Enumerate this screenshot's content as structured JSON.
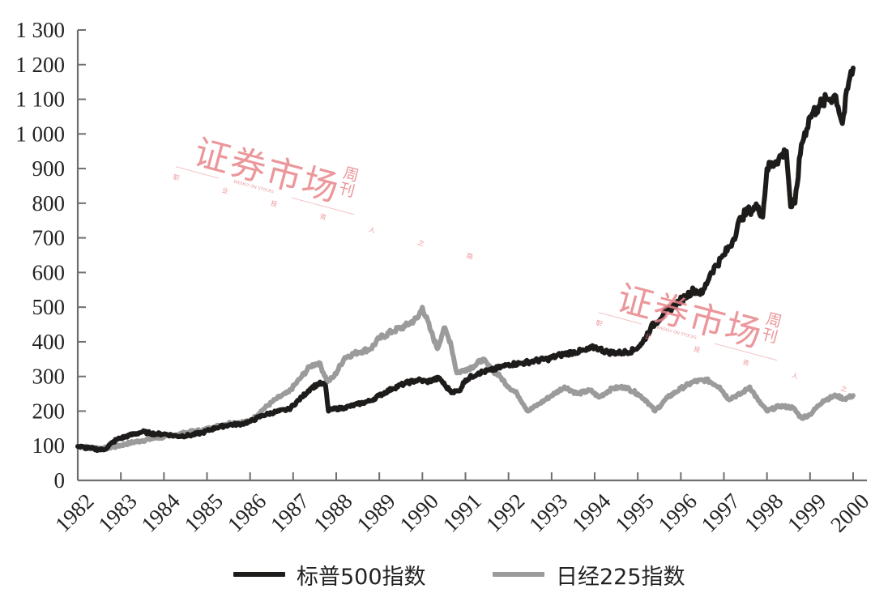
{
  "chart_data": {
    "type": "line",
    "title": "",
    "xlabel": "",
    "ylabel": "",
    "ylim": [
      0,
      1300
    ],
    "xlim": [
      1982,
      2000
    ],
    "grid": false,
    "legend_position": "bottom",
    "y_ticks": [
      "0",
      "100",
      "200",
      "300",
      "400",
      "500",
      "600",
      "700",
      "800",
      "900",
      "1 000",
      "1 100",
      "1 200",
      "1 300"
    ],
    "x_ticks": [
      "1982",
      "1983",
      "1984",
      "1985",
      "1986",
      "1987",
      "1988",
      "1989",
      "1990",
      "1991",
      "1992",
      "1993",
      "1994",
      "1995",
      "1996",
      "1997",
      "1998",
      "1999",
      "2000"
    ],
    "series": [
      {
        "name": "标普500指数",
        "color": "#1e1b1b",
        "x": [
          1982.0,
          1982.3,
          1982.6,
          1982.9,
          1983.2,
          1983.5,
          1983.8,
          1984.0,
          1984.3,
          1984.6,
          1984.9,
          1985.2,
          1985.5,
          1985.8,
          1986.0,
          1986.3,
          1986.6,
          1986.9,
          1987.2,
          1987.4,
          1987.6,
          1987.75,
          1987.82,
          1987.9,
          1988.2,
          1988.5,
          1988.8,
          1989.0,
          1989.3,
          1989.6,
          1989.9,
          1990.1,
          1990.4,
          1990.55,
          1990.7,
          1990.85,
          1991.0,
          1991.3,
          1991.6,
          1991.9,
          1992.0,
          1992.3,
          1992.6,
          1992.9,
          1993.2,
          1993.5,
          1993.8,
          1994.0,
          1994.1,
          1994.3,
          1994.6,
          1994.9,
          1995.1,
          1995.3,
          1995.6,
          1995.9,
          1996.1,
          1996.3,
          1996.5,
          1996.7,
          1997.0,
          1997.2,
          1997.4,
          1997.6,
          1997.8,
          1997.9,
          1998.0,
          1998.2,
          1998.45,
          1998.55,
          1998.65,
          1998.8,
          1999.0,
          1999.2,
          1999.4,
          1999.6,
          1999.75,
          1999.9,
          2000.0
        ],
        "values": [
          98,
          92,
          88,
          118,
          130,
          140,
          134,
          134,
          128,
          130,
          138,
          152,
          160,
          163,
          170,
          188,
          198,
          205,
          240,
          265,
          280,
          275,
          200,
          205,
          210,
          220,
          230,
          245,
          265,
          280,
          290,
          285,
          295,
          270,
          255,
          258,
          290,
          310,
          318,
          330,
          335,
          338,
          345,
          350,
          362,
          370,
          375,
          385,
          380,
          370,
          368,
          375,
          395,
          440,
          480,
          510,
          530,
          550,
          540,
          600,
          650,
          690,
          760,
          780,
          790,
          760,
          900,
          920,
          950,
          790,
          800,
          970,
          1050,
          1080,
          1100,
          1110,
          1030,
          1150,
          1190
        ]
      },
      {
        "name": "日经225指数",
        "color": "#9b9b9b",
        "x": [
          1982.0,
          1982.3,
          1982.6,
          1982.9,
          1983.2,
          1983.5,
          1983.8,
          1984.0,
          1984.3,
          1984.6,
          1984.9,
          1985.2,
          1985.5,
          1985.8,
          1986.0,
          1986.3,
          1986.6,
          1986.9,
          1987.2,
          1987.4,
          1987.6,
          1987.8,
          1987.95,
          1988.2,
          1988.5,
          1988.8,
          1989.0,
          1989.3,
          1989.6,
          1989.9,
          1990.0,
          1990.2,
          1990.35,
          1990.5,
          1990.65,
          1990.8,
          1991.0,
          1991.2,
          1991.4,
          1991.6,
          1991.8,
          1992.0,
          1992.2,
          1992.45,
          1992.7,
          1993.0,
          1993.3,
          1993.6,
          1993.9,
          1994.1,
          1994.4,
          1994.7,
          1995.0,
          1995.2,
          1995.4,
          1995.7,
          1996.0,
          1996.3,
          1996.6,
          1996.9,
          1997.1,
          1997.4,
          1997.6,
          1997.8,
          1998.0,
          1998.3,
          1998.6,
          1998.8,
          1999.0,
          1999.3,
          1999.6,
          1999.8,
          2000.0
        ],
        "values": [
          98,
          95,
          92,
          98,
          108,
          115,
          122,
          125,
          132,
          140,
          145,
          155,
          165,
          168,
          170,
          205,
          235,
          255,
          300,
          330,
          340,
          285,
          300,
          355,
          370,
          380,
          410,
          430,
          445,
          470,
          500,
          430,
          380,
          440,
          400,
          310,
          320,
          330,
          350,
          320,
          300,
          270,
          250,
          200,
          220,
          245,
          270,
          250,
          260,
          240,
          265,
          270,
          250,
          230,
          200,
          240,
          265,
          285,
          290,
          270,
          235,
          250,
          270,
          230,
          200,
          215,
          210,
          180,
          190,
          230,
          245,
          235,
          245
        ]
      }
    ]
  },
  "legend": {
    "items": [
      {
        "label": "标普500指数",
        "color": "#1e1b1b"
      },
      {
        "label": "日经225指数",
        "color": "#9b9b9b"
      }
    ]
  },
  "watermarks": [
    {
      "main": "证券市场",
      "side": "周刊",
      "subtitle": "职 业 投 资 人 之 路",
      "english": "WEEKLY ON STOCKS",
      "color": "#e8858a"
    },
    {
      "main": "证券市场",
      "side": "周刊",
      "subtitle": "职 业 投 资 人 之 路",
      "english": "WEEKLY ON STOCKS",
      "color": "#e8858a"
    }
  ]
}
